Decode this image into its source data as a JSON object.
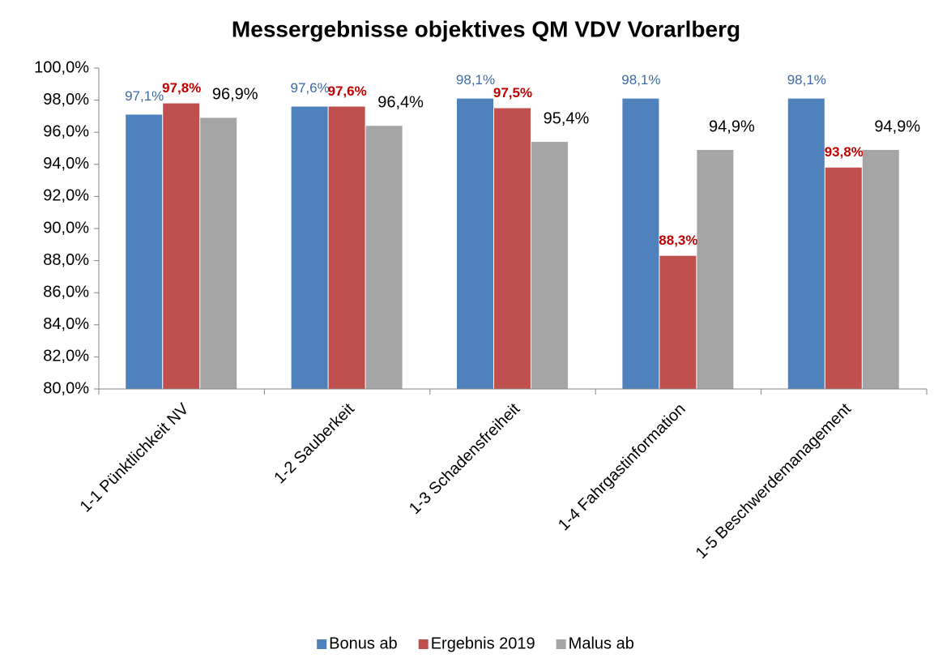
{
  "chart_data": {
    "type": "bar",
    "title": "Messergebnisse objektives QM VDV Vorarlberg",
    "categories": [
      "1-1 Pünktlichkeit NV",
      "1-2 Sauberkeit",
      "1-3 Schadensfreiheit",
      "1-4 Fahrgastinformation",
      "1-5 Beschwerdemanagement"
    ],
    "series": [
      {
        "name": "Bonus ab",
        "color": "#4f81bd",
        "values": [
          97.1,
          97.6,
          98.1,
          98.1,
          98.1
        ],
        "value_labels": [
          "97,1%",
          "97,6%",
          "98,1%",
          "98,1%",
          "98,1%"
        ]
      },
      {
        "name": "Ergebnis 2019",
        "color": "#c0504d",
        "values": [
          97.8,
          97.6,
          97.5,
          88.3,
          93.8
        ],
        "value_labels": [
          "97,8%",
          "97,6%",
          "97,5%",
          "88,3%",
          "93,8%"
        ]
      },
      {
        "name": "Malus ab",
        "color": "#a5a5a5",
        "values": [
          96.9,
          96.4,
          95.4,
          94.9,
          94.9
        ],
        "value_labels": [
          "96,9%",
          "96,4%",
          "95,4%",
          "94,9%",
          "94,9%"
        ]
      }
    ],
    "ylim": [
      80,
      100
    ],
    "yticks": [
      {
        "value": 80,
        "label": "80,0%"
      },
      {
        "value": 82,
        "label": "82,0%"
      },
      {
        "value": 84,
        "label": "84,0%"
      },
      {
        "value": 86,
        "label": "86,0%"
      },
      {
        "value": 88,
        "label": "88,0%"
      },
      {
        "value": 90,
        "label": "90,0%"
      },
      {
        "value": 92,
        "label": "92,0%"
      },
      {
        "value": 94,
        "label": "94,0%"
      },
      {
        "value": 96,
        "label": "96,0%"
      },
      {
        "value": 98,
        "label": "98,0%"
      },
      {
        "value": 100,
        "label": "100,0%"
      }
    ],
    "grid": false,
    "legend": "bottom"
  }
}
